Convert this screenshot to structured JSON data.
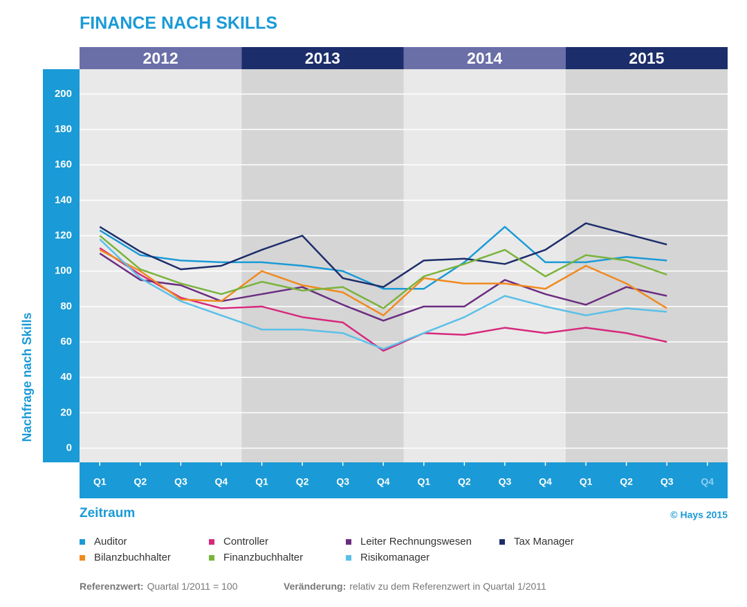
{
  "chart_data": {
    "type": "line",
    "title": "FINANCE NACH SKILLS",
    "years": [
      "2012",
      "2013",
      "2014",
      "2015"
    ],
    "categories": [
      "Q1",
      "Q2",
      "Q3",
      "Q4",
      "Q1",
      "Q2",
      "Q3",
      "Q4",
      "Q1",
      "Q2",
      "Q3",
      "Q4",
      "Q1",
      "Q2",
      "Q3",
      "Q4"
    ],
    "x_label": "Zeitraum",
    "y_label": "Nachfrage nach Skills",
    "credit": "© Hays 2015",
    "ylim": [
      -8,
      214
    ],
    "yticks": [
      0,
      20,
      40,
      60,
      80,
      100,
      120,
      140,
      160,
      180,
      200
    ],
    "grid": true,
    "series": [
      {
        "name": "Auditor",
        "color": "#1a9ad6",
        "values": [
          123,
          109,
          106,
          105,
          105,
          103,
          100,
          90,
          90,
          105,
          125,
          105,
          105,
          108,
          106,
          null
        ]
      },
      {
        "name": "Controller",
        "color": "#d6297d",
        "values": [
          113,
          98,
          85,
          79,
          80,
          74,
          71,
          55,
          65,
          64,
          68,
          65,
          68,
          65,
          60,
          null
        ]
      },
      {
        "name": "Leiter Rechnungswesen",
        "color": "#6b2d80",
        "values": [
          110,
          95,
          92,
          83,
          87,
          91,
          81,
          72,
          80,
          80,
          95,
          87,
          81,
          91,
          86,
          null
        ]
      },
      {
        "name": "Tax Manager",
        "color": "#1c2d6b",
        "values": [
          125,
          111,
          101,
          103,
          112,
          120,
          96,
          91,
          106,
          107,
          104,
          112,
          127,
          121,
          115,
          null
        ]
      },
      {
        "name": "Bilanzbuchhalter",
        "color": "#f08a1f",
        "values": [
          112,
          100,
          84,
          83,
          100,
          92,
          88,
          75,
          96,
          93,
          93,
          90,
          103,
          93,
          79,
          null
        ]
      },
      {
        "name": "Finanzbuchhalter",
        "color": "#7ab33c",
        "values": [
          120,
          101,
          93,
          87,
          94,
          89,
          91,
          79,
          97,
          104,
          112,
          97,
          109,
          106,
          98,
          null
        ]
      },
      {
        "name": "Risikomanager",
        "color": "#5bc0e8",
        "values": [
          118,
          96,
          83,
          75,
          67,
          67,
          65,
          56,
          65,
          74,
          86,
          80,
          75,
          79,
          77,
          null
        ]
      }
    ],
    "notes": [
      {
        "label": "Referenzwert:",
        "text": "Quartal 1/2011 = 100"
      },
      {
        "label": "Veränderung:",
        "text": "relativ zu dem Referenzwert in Quartal 1/2011"
      }
    ]
  }
}
